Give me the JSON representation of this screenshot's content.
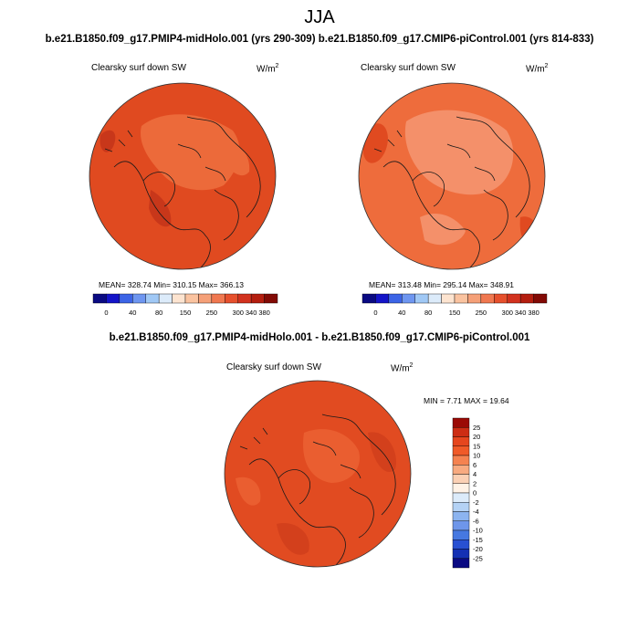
{
  "season": "JJA",
  "case_titles": "b.e21.B1850.f09_g17.PMIP4-midHolo.001 (yrs 290-309) b.e21.B1850.f09_g17.CMIP6-piControl.001 (yrs 814-833)",
  "left_panel": {
    "variable": "Clearsky surf down SW",
    "units": "W/m",
    "units_exp": "2",
    "stats": "MEAN= 328.74  Min= 310.15  Max= 366.13"
  },
  "right_panel": {
    "variable": "Clearsky surf down SW",
    "units": "W/m",
    "units_exp": "2",
    "stats": "MEAN= 313.48  Min= 295.14  Max= 348.91"
  },
  "diff_panel": {
    "title": "b.e21.B1850.f09_g17.PMIP4-midHolo.001 - b.e21.B1850.f09_g17.CMIP6-piControl.001",
    "variable": "Clearsky surf down SW",
    "units": "W/m",
    "units_exp": "2",
    "stats": "MIN =   7.71 MAX =  19.64"
  },
  "horizontal_colorbar": {
    "labels": [
      "0",
      "40",
      "80",
      "150",
      "250",
      "300",
      "340",
      "380"
    ],
    "colors": [
      "#0a0a82",
      "#1414c8",
      "#3c64e6",
      "#6e96f0",
      "#a0c8f5",
      "#dcebfa",
      "#fde4d0",
      "#fac3a0",
      "#f5a078",
      "#f07850",
      "#e6502d",
      "#d2321e",
      "#b41e0f",
      "#820a05"
    ]
  },
  "vertical_colorbar": {
    "labels": [
      "25",
      "20",
      "15",
      "10",
      "6",
      "4",
      "2",
      "0",
      "-2",
      "-4",
      "-6",
      "-10",
      "-15",
      "-20",
      "-25"
    ],
    "colors": [
      "#9b0a05",
      "#cd2d14",
      "#e6461e",
      "#f05a28",
      "#f58250",
      "#f8aa80",
      "#fbd0b4",
      "#fff2e6",
      "#dcebfa",
      "#b4d2f5",
      "#8cb4f0",
      "#6e96ea",
      "#4678e1",
      "#2850d2",
      "#1430b4",
      "#0a0a82"
    ]
  },
  "map_colors": {
    "left_base": "#e04a20",
    "left_light": "#ec6a3a",
    "left_dark": "#c8371a",
    "right_base": "#ee6c3c",
    "right_light": "#f4906a",
    "right_dark": "#e04a20",
    "diff_base": "#e14b21",
    "diff_light": "#ea5e30",
    "diff_dark": "#d3401c"
  }
}
